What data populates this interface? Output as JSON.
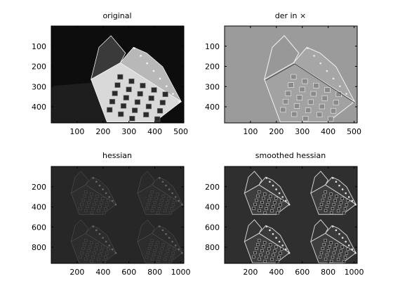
{
  "chart_data": [
    {
      "type": "image",
      "title": "original",
      "colormap": "gray",
      "image_size": [
        512,
        480
      ],
      "xlim": [
        0,
        512
      ],
      "ylim": [
        0,
        480
      ],
      "xticks": [
        "100",
        "200",
        "300",
        "400",
        "500"
      ],
      "yticks": [
        "100",
        "200",
        "300",
        "400"
      ],
      "xtick_values": [
        100,
        200,
        300,
        400,
        500
      ],
      "ytick_values": [
        100,
        200,
        300,
        400
      ],
      "render": "original"
    },
    {
      "type": "image",
      "title": "der in ×",
      "colormap": "gray",
      "image_size": [
        512,
        480
      ],
      "xlim": [
        0,
        512
      ],
      "ylim": [
        0,
        480
      ],
      "xticks": [
        "100",
        "200",
        "300",
        "400",
        "500"
      ],
      "yticks": [
        "100",
        "200",
        "300",
        "400"
      ],
      "xtick_values": [
        100,
        200,
        300,
        400,
        500
      ],
      "ytick_values": [
        100,
        200,
        300,
        400
      ],
      "render": "derivative"
    },
    {
      "type": "image",
      "title": "hessian",
      "colormap": "gray",
      "image_size": [
        1024,
        960
      ],
      "xlim": [
        0,
        1024
      ],
      "ylim": [
        0,
        960
      ],
      "xticks": [
        "200",
        "400",
        "600",
        "800",
        "1000"
      ],
      "yticks": [
        "200",
        "400",
        "600",
        "800"
      ],
      "xtick_values": [
        200,
        400,
        600,
        800,
        1000
      ],
      "ytick_values": [
        200,
        400,
        600,
        800
      ],
      "render": "hessian"
    },
    {
      "type": "image",
      "title": "smoothed hessian",
      "colormap": "gray",
      "image_size": [
        1024,
        960
      ],
      "xlim": [
        0,
        1024
      ],
      "ylim": [
        0,
        960
      ],
      "xticks": [
        "200",
        "400",
        "600",
        "800",
        "1000"
      ],
      "yticks": [
        "200",
        "400",
        "600",
        "800"
      ],
      "xtick_values": [
        200,
        400,
        600,
        800,
        1000
      ],
      "ytick_values": [
        200,
        400,
        600,
        800
      ],
      "render": "smoothed"
    }
  ]
}
